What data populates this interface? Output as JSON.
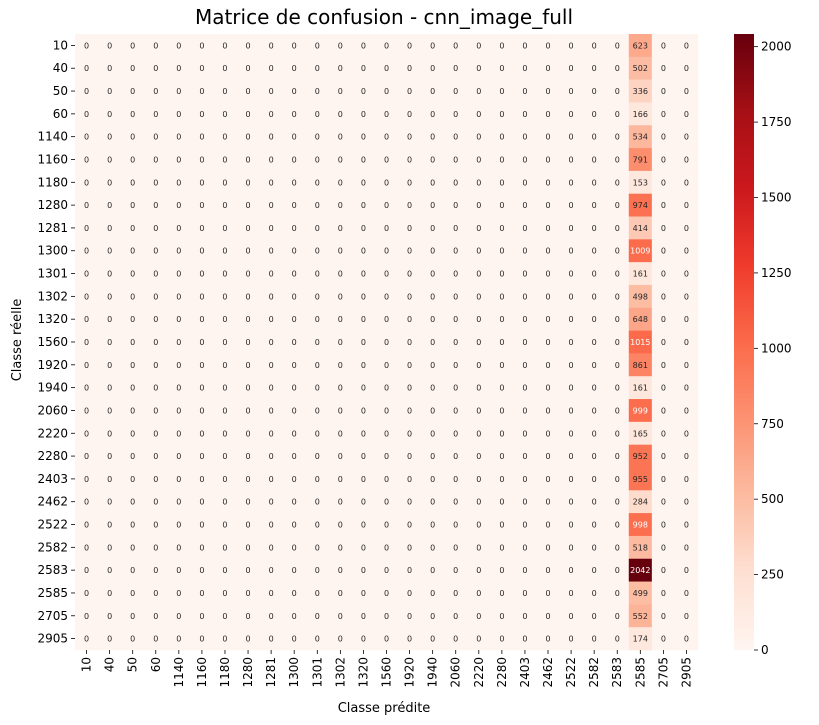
{
  "chart_data": {
    "type": "heatmap",
    "title": "Matrice de confusion - cnn_image_full",
    "xlabel": "Classe prédite",
    "ylabel": "Classe réelle",
    "classes": [
      "10",
      "40",
      "50",
      "60",
      "1140",
      "1160",
      "1180",
      "1280",
      "1281",
      "1300",
      "1301",
      "1302",
      "1320",
      "1560",
      "1920",
      "1940",
      "2060",
      "2220",
      "2280",
      "2403",
      "2462",
      "2522",
      "2582",
      "2583",
      "2585",
      "2705",
      "2905"
    ],
    "predicted_column": "2585",
    "column_2585_counts": [
      623,
      502,
      336,
      166,
      534,
      791,
      153,
      974,
      414,
      1009,
      161,
      498,
      648,
      1015,
      861,
      161,
      999,
      165,
      952,
      955,
      284,
      998,
      518,
      2042,
      499,
      552,
      174
    ],
    "other_cells_value": 0,
    "colormap": "Reds",
    "color_range": [
      0,
      2042
    ],
    "colorbar_ticks": [
      0,
      250,
      500,
      750,
      1000,
      1250,
      1500,
      1750,
      2000
    ]
  }
}
